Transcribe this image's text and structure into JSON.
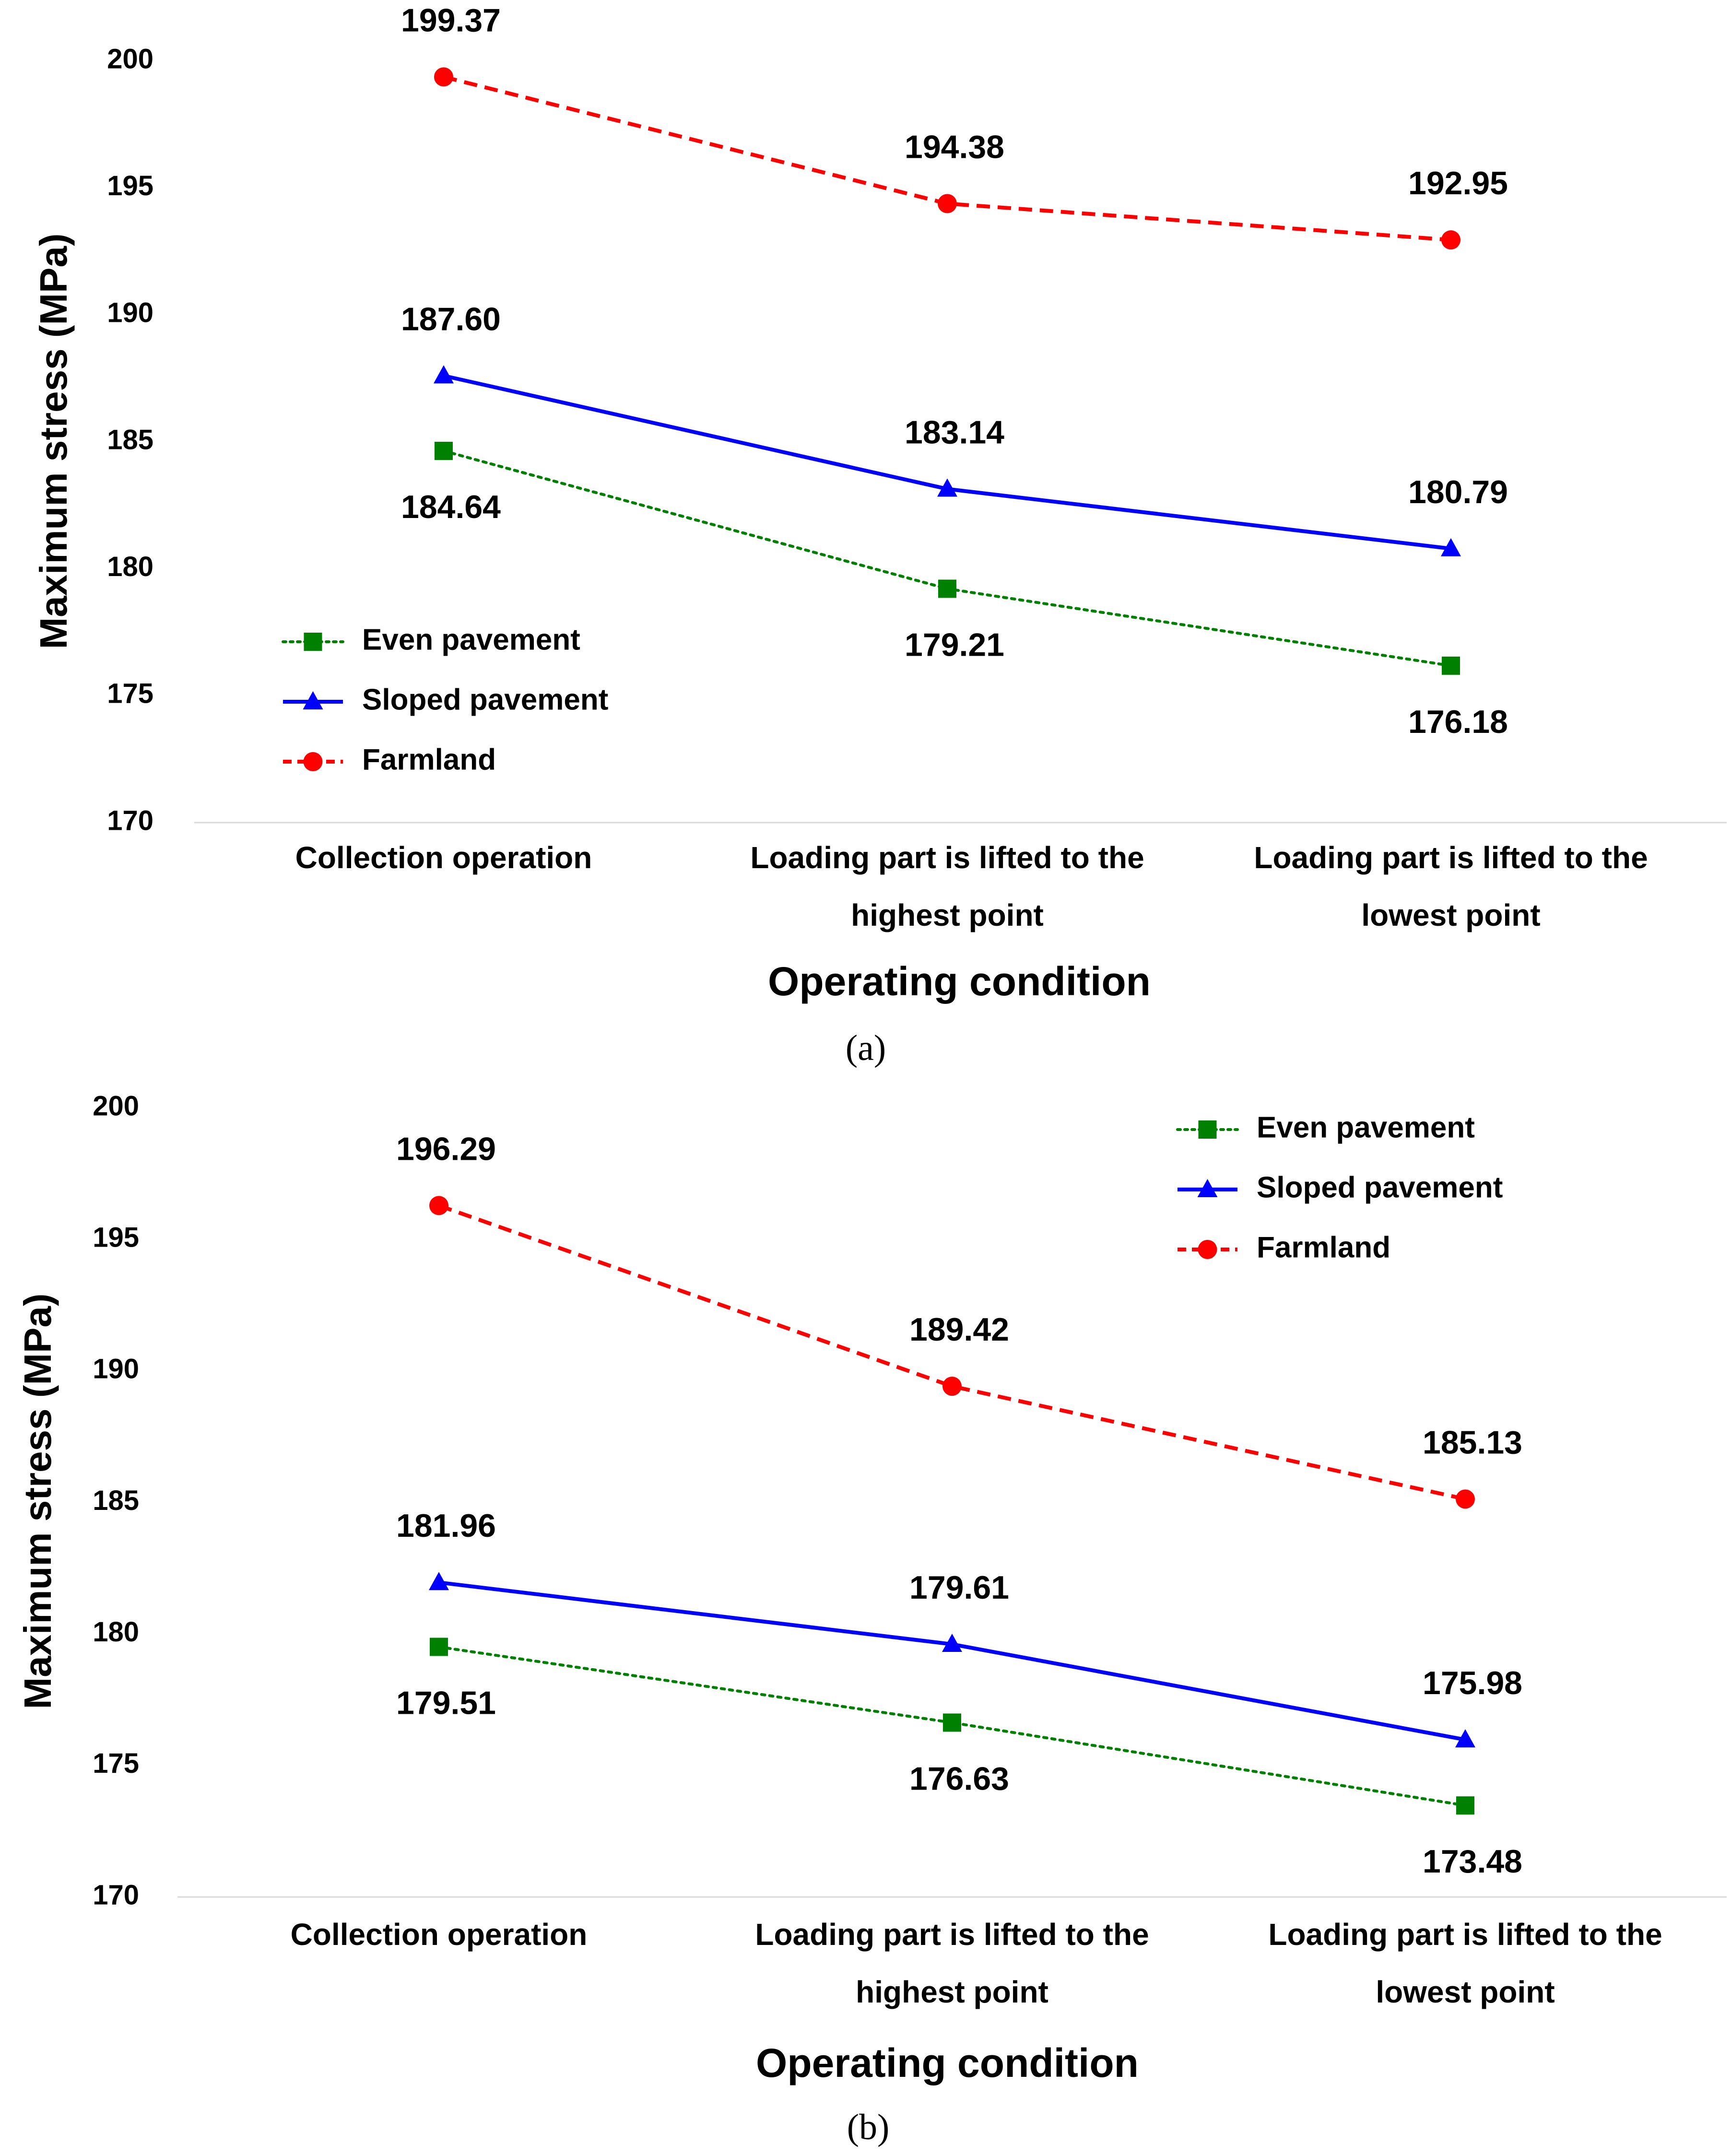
{
  "chart_data": [
    {
      "type": "line",
      "panel_label": "(a)",
      "categories": [
        [
          "Collection operation"
        ],
        [
          "Loading part is lifted to the",
          "highest point"
        ],
        [
          "Loading part is lifted to the",
          "lowest point"
        ]
      ],
      "xlabel": "Operating condition",
      "ylabel": "Maximum stress (MPa)",
      "ylim": [
        170,
        200
      ],
      "yticks": [
        170,
        175,
        180,
        185,
        190,
        195,
        200
      ],
      "legend_position": "bottom-left",
      "series": [
        {
          "name": "Even pavement",
          "color": "#008000",
          "dash": "dotted",
          "marker": "square",
          "values": [
            184.64,
            179.21,
            176.18
          ],
          "labels": [
            "184.64",
            "179.21",
            "176.18"
          ],
          "label_side": [
            "below",
            "below",
            "below"
          ]
        },
        {
          "name": "Sloped pavement",
          "color": "#0000FF",
          "dash": "solid",
          "marker": "triangle",
          "values": [
            187.6,
            183.14,
            180.79
          ],
          "labels": [
            "187.60",
            "183.14",
            "180.79"
          ],
          "label_side": [
            "above",
            "above",
            "above"
          ]
        },
        {
          "name": "Farmland",
          "color": "#FF0000",
          "dash": "dashed",
          "marker": "circle",
          "values": [
            199.37,
            194.38,
            192.95
          ],
          "labels": [
            "199.37",
            "194.38",
            "192.95"
          ],
          "label_side": [
            "above",
            "above",
            "above"
          ]
        }
      ]
    },
    {
      "type": "line",
      "panel_label": "(b)",
      "categories": [
        [
          "Collection operation"
        ],
        [
          "Loading part is lifted to the",
          "highest point"
        ],
        [
          "Loading part is lifted to the",
          "lowest point"
        ]
      ],
      "xlabel": "Operating condition",
      "ylabel": "Maximum stress (MPa)",
      "ylim": [
        170,
        200
      ],
      "yticks": [
        170,
        175,
        180,
        185,
        190,
        195,
        200
      ],
      "legend_position": "top-right",
      "series": [
        {
          "name": "Even pavement",
          "color": "#008000",
          "dash": "dotted",
          "marker": "square",
          "values": [
            179.51,
            176.63,
            173.48
          ],
          "labels": [
            "179.51",
            "176.63",
            "173.48"
          ],
          "label_side": [
            "below",
            "below",
            "below"
          ]
        },
        {
          "name": "Sloped pavement",
          "color": "#0000FF",
          "dash": "solid",
          "marker": "triangle",
          "values": [
            181.96,
            179.61,
            175.98
          ],
          "labels": [
            "181.96",
            "179.61",
            "175.98"
          ],
          "label_side": [
            "above",
            "above",
            "above"
          ]
        },
        {
          "name": "Farmland",
          "color": "#FF0000",
          "dash": "dashed",
          "marker": "circle",
          "values": [
            196.29,
            189.42,
            185.13
          ],
          "labels": [
            "196.29",
            "189.42",
            "185.13"
          ],
          "label_side": [
            "above",
            "above",
            "above"
          ]
        }
      ]
    }
  ]
}
